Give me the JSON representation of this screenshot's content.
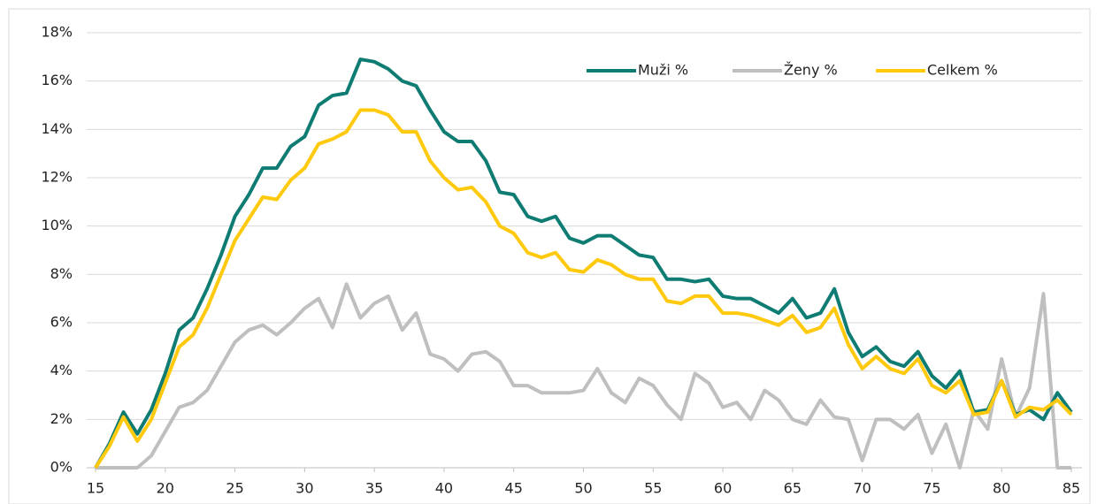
{
  "chart_data": {
    "type": "line",
    "x": [
      15,
      16,
      17,
      18,
      19,
      20,
      21,
      22,
      23,
      24,
      25,
      26,
      27,
      28,
      29,
      30,
      31,
      32,
      33,
      34,
      35,
      36,
      37,
      38,
      39,
      40,
      41,
      42,
      43,
      44,
      45,
      46,
      47,
      48,
      49,
      50,
      51,
      52,
      53,
      54,
      55,
      56,
      57,
      58,
      59,
      60,
      61,
      62,
      63,
      64,
      65,
      66,
      67,
      68,
      69,
      70,
      71,
      72,
      73,
      74,
      75,
      76,
      77,
      78,
      79,
      80,
      81,
      82,
      83,
      84,
      85
    ],
    "series": [
      {
        "name": "Muži %",
        "color": "#0e7c72",
        "values": [
          0,
          1.0,
          2.3,
          1.4,
          2.4,
          3.9,
          5.7,
          6.2,
          7.4,
          8.8,
          10.4,
          11.3,
          12.4,
          12.4,
          13.3,
          13.7,
          15.0,
          15.4,
          15.5,
          16.9,
          16.8,
          16.5,
          16.0,
          15.8,
          14.8,
          13.9,
          13.5,
          13.5,
          12.7,
          11.4,
          11.3,
          10.4,
          10.2,
          10.4,
          9.5,
          9.3,
          9.6,
          9.6,
          9.2,
          8.8,
          8.7,
          7.8,
          7.8,
          7.7,
          7.8,
          7.1,
          7.0,
          7.0,
          6.7,
          6.4,
          7.0,
          6.2,
          6.4,
          7.4,
          5.6,
          4.6,
          5.0,
          4.4,
          4.2,
          4.8,
          3.8,
          3.3,
          4.0,
          2.3,
          2.4,
          3.6,
          2.2,
          2.4,
          2.0,
          3.1,
          2.3
        ]
      },
      {
        "name": "Ženy %",
        "color": "#bfbfbf",
        "values": [
          0,
          0,
          0,
          0,
          0.5,
          1.5,
          2.5,
          2.7,
          3.2,
          4.2,
          5.2,
          5.7,
          5.9,
          5.5,
          6.0,
          6.6,
          7.0,
          5.8,
          7.6,
          6.2,
          6.8,
          7.1,
          5.7,
          6.4,
          4.7,
          4.5,
          4.0,
          4.7,
          4.8,
          4.4,
          3.4,
          3.4,
          3.1,
          3.1,
          3.1,
          3.2,
          4.1,
          3.1,
          2.7,
          3.7,
          3.4,
          2.6,
          2.0,
          3.9,
          3.5,
          2.5,
          2.7,
          2.0,
          3.2,
          2.8,
          2.0,
          1.8,
          2.8,
          2.1,
          2.0,
          0.3,
          2.0,
          2.0,
          1.6,
          2.2,
          0.6,
          1.8,
          0,
          2.4,
          1.6,
          4.5,
          2.1,
          3.3,
          7.2,
          0,
          0
        ]
      },
      {
        "name": "Celkem %",
        "color": "#ffc90e",
        "values": [
          0,
          0.9,
          2.1,
          1.1,
          2.0,
          3.5,
          5.0,
          5.5,
          6.6,
          8.0,
          9.4,
          10.3,
          11.2,
          11.1,
          11.9,
          12.4,
          13.4,
          13.6,
          13.9,
          14.8,
          14.8,
          14.6,
          13.9,
          13.9,
          12.7,
          12.0,
          11.5,
          11.6,
          11.0,
          10.0,
          9.7,
          8.9,
          8.7,
          8.9,
          8.2,
          8.1,
          8.6,
          8.4,
          8.0,
          7.8,
          7.8,
          6.9,
          6.8,
          7.1,
          7.1,
          6.4,
          6.4,
          6.3,
          6.1,
          5.9,
          6.3,
          5.6,
          5.8,
          6.6,
          5.1,
          4.1,
          4.6,
          4.1,
          3.9,
          4.5,
          3.4,
          3.1,
          3.6,
          2.2,
          2.3,
          3.6,
          2.1,
          2.5,
          2.4,
          2.8,
          2.2
        ]
      }
    ],
    "xlim": [
      15,
      85
    ],
    "xticks": [
      15,
      20,
      25,
      30,
      35,
      40,
      45,
      50,
      55,
      60,
      65,
      70,
      75,
      80,
      85
    ],
    "ylim": [
      0,
      18
    ],
    "yticks": [
      {
        "value": 0,
        "label": "0%"
      },
      {
        "value": 2,
        "label": "2%"
      },
      {
        "value": 4,
        "label": "4%"
      },
      {
        "value": 6,
        "label": "6%"
      },
      {
        "value": 8,
        "label": "8%"
      },
      {
        "value": 10,
        "label": "10%"
      },
      {
        "value": 12,
        "label": "12%"
      },
      {
        "value": 14,
        "label": "14%"
      },
      {
        "value": 16,
        "label": "16%"
      },
      {
        "value": 18,
        "label": "18%"
      }
    ],
    "grid": true,
    "legend": "top-right"
  }
}
